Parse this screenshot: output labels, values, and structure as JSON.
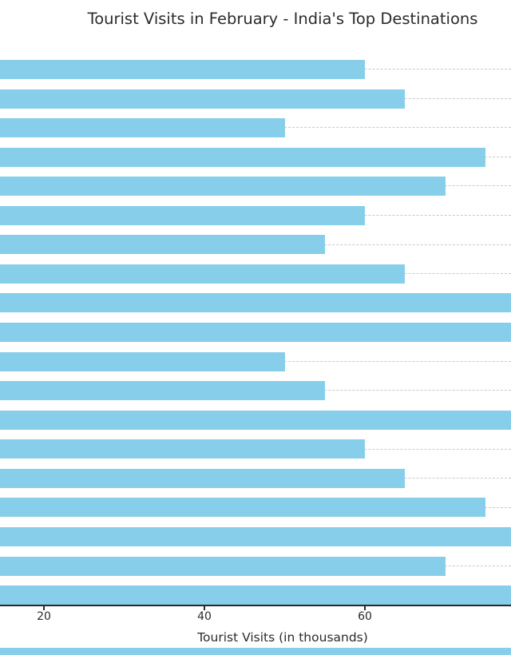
{
  "title": "Tourist Visits in February - India's Top Destinations",
  "x_axis": {
    "label": "Tourist Visits (in thousands)",
    "ticks": [
      "20",
      "40",
      "60"
    ]
  },
  "chart_data": {
    "type": "bar",
    "orientation": "horizontal",
    "title": "Tourist Visits in February - India's Top Destinations",
    "xlabel": "Tourist Visits (in thousands)",
    "ylabel": "",
    "x_ticks": [
      20,
      40,
      60
    ],
    "categories": [],
    "values": [
      60,
      65,
      50,
      75,
      70,
      60,
      55,
      65,
      80,
      80,
      50,
      55,
      80,
      60,
      65,
      75,
      80,
      70,
      80
    ],
    "xlim_visible": [
      14.5,
      78.2
    ],
    "grid": {
      "axis": "y",
      "style": "dashed"
    },
    "legend": "none",
    "layout_notes": {
      "left": "y-axis category labels (destination names) and bar origins are cropped off the left edge of the screenshot",
      "right": "bars recorded as 80 are clipped at the right edge; their values are estimates (>= 78)",
      "bottom": "a thin partial blue bar row is visible at the very bottom edge of the image"
    },
    "colors": {
      "bar": "#87CEEB",
      "grid": "#c9c9c9",
      "axis": "#2b2b2b",
      "text": "#2b2b2b",
      "background": "#ffffff"
    }
  }
}
